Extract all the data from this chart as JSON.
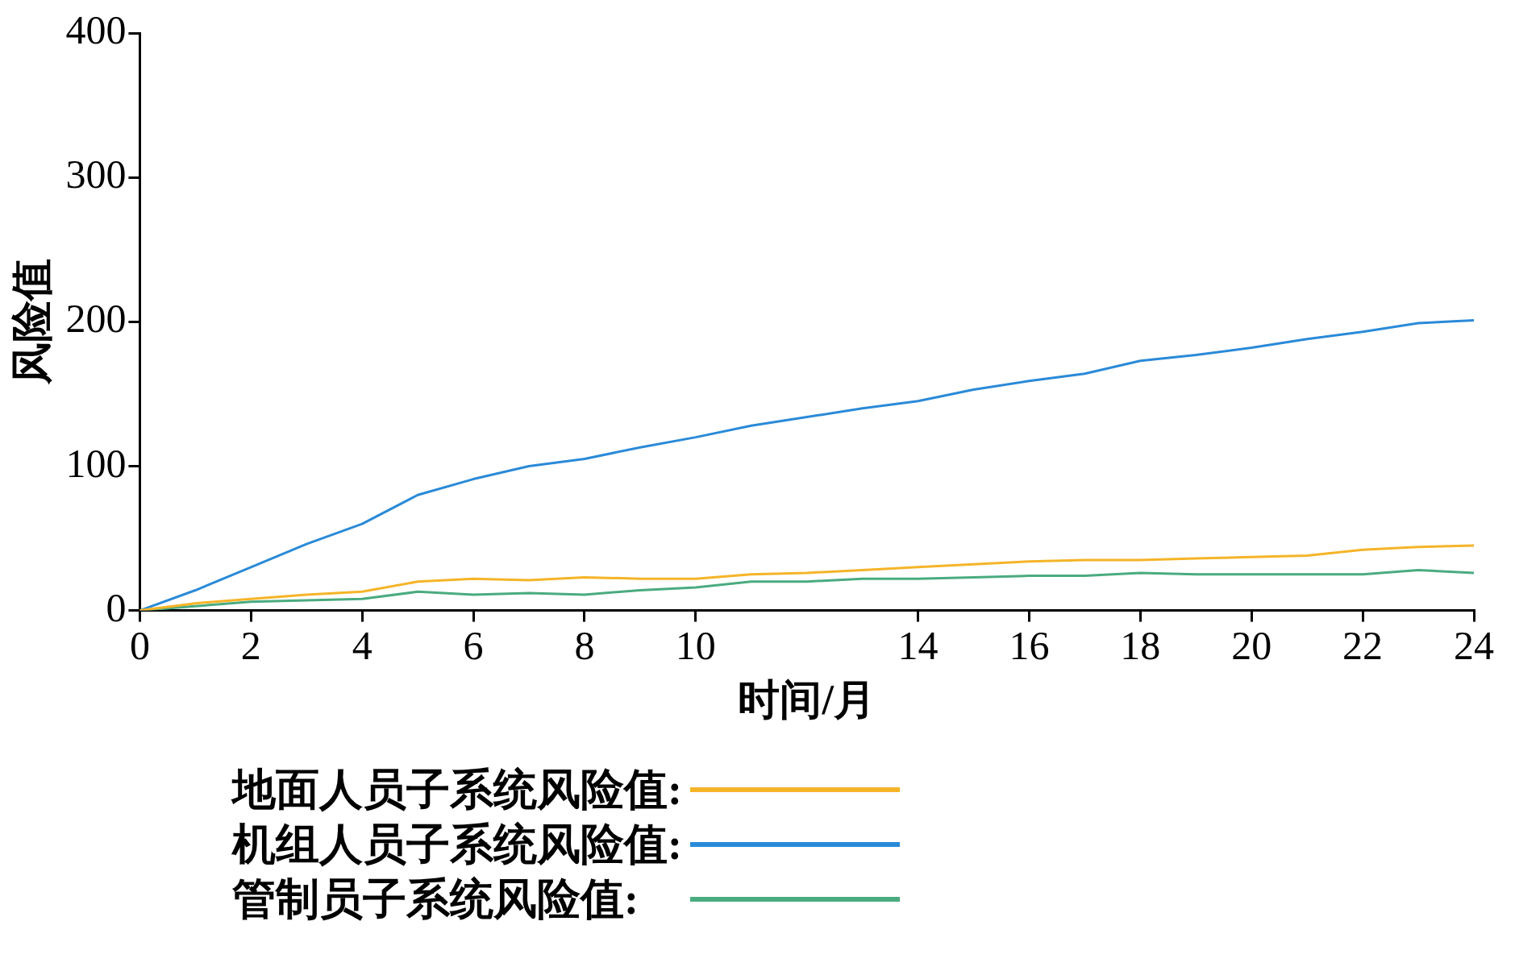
{
  "chart_data": {
    "type": "line",
    "xlabel": "时间/月",
    "ylabel": "风险值",
    "x": [
      0,
      1,
      2,
      3,
      4,
      5,
      6,
      7,
      8,
      9,
      10,
      11,
      12,
      13,
      14,
      15,
      16,
      17,
      18,
      19,
      20,
      21,
      22,
      23,
      24
    ],
    "series": [
      {
        "name": "地面人员子系统风险值:",
        "color": "#f5b428",
        "values": [
          0,
          5,
          8,
          11,
          13,
          20,
          22,
          21,
          23,
          22,
          22,
          25,
          26,
          28,
          30,
          32,
          34,
          35,
          35,
          36,
          37,
          38,
          42,
          44,
          45
        ]
      },
      {
        "name": "机组人员子系统风险值:",
        "color": "#2a8ad8",
        "values": [
          0,
          14,
          30,
          46,
          60,
          80,
          91,
          100,
          105,
          113,
          120,
          128,
          134,
          140,
          145,
          153,
          159,
          164,
          173,
          177,
          182,
          188,
          193,
          199,
          201
        ]
      },
      {
        "name": "管制员子系统风险值:",
        "color": "#4aab80",
        "values": [
          0,
          3,
          6,
          7,
          8,
          13,
          11,
          12,
          11,
          14,
          16,
          20,
          20,
          22,
          22,
          23,
          24,
          24,
          26,
          25,
          25,
          25,
          25,
          28,
          26
        ]
      }
    ],
    "xlim": [
      0,
      24
    ],
    "xticks": [
      0,
      2,
      4,
      6,
      8,
      10,
      14,
      16,
      18,
      20,
      22,
      24
    ],
    "ylim": [
      0,
      400
    ],
    "yticks": [
      0,
      100,
      200,
      300,
      400
    ],
    "grid": false,
    "legend": "bottom"
  }
}
